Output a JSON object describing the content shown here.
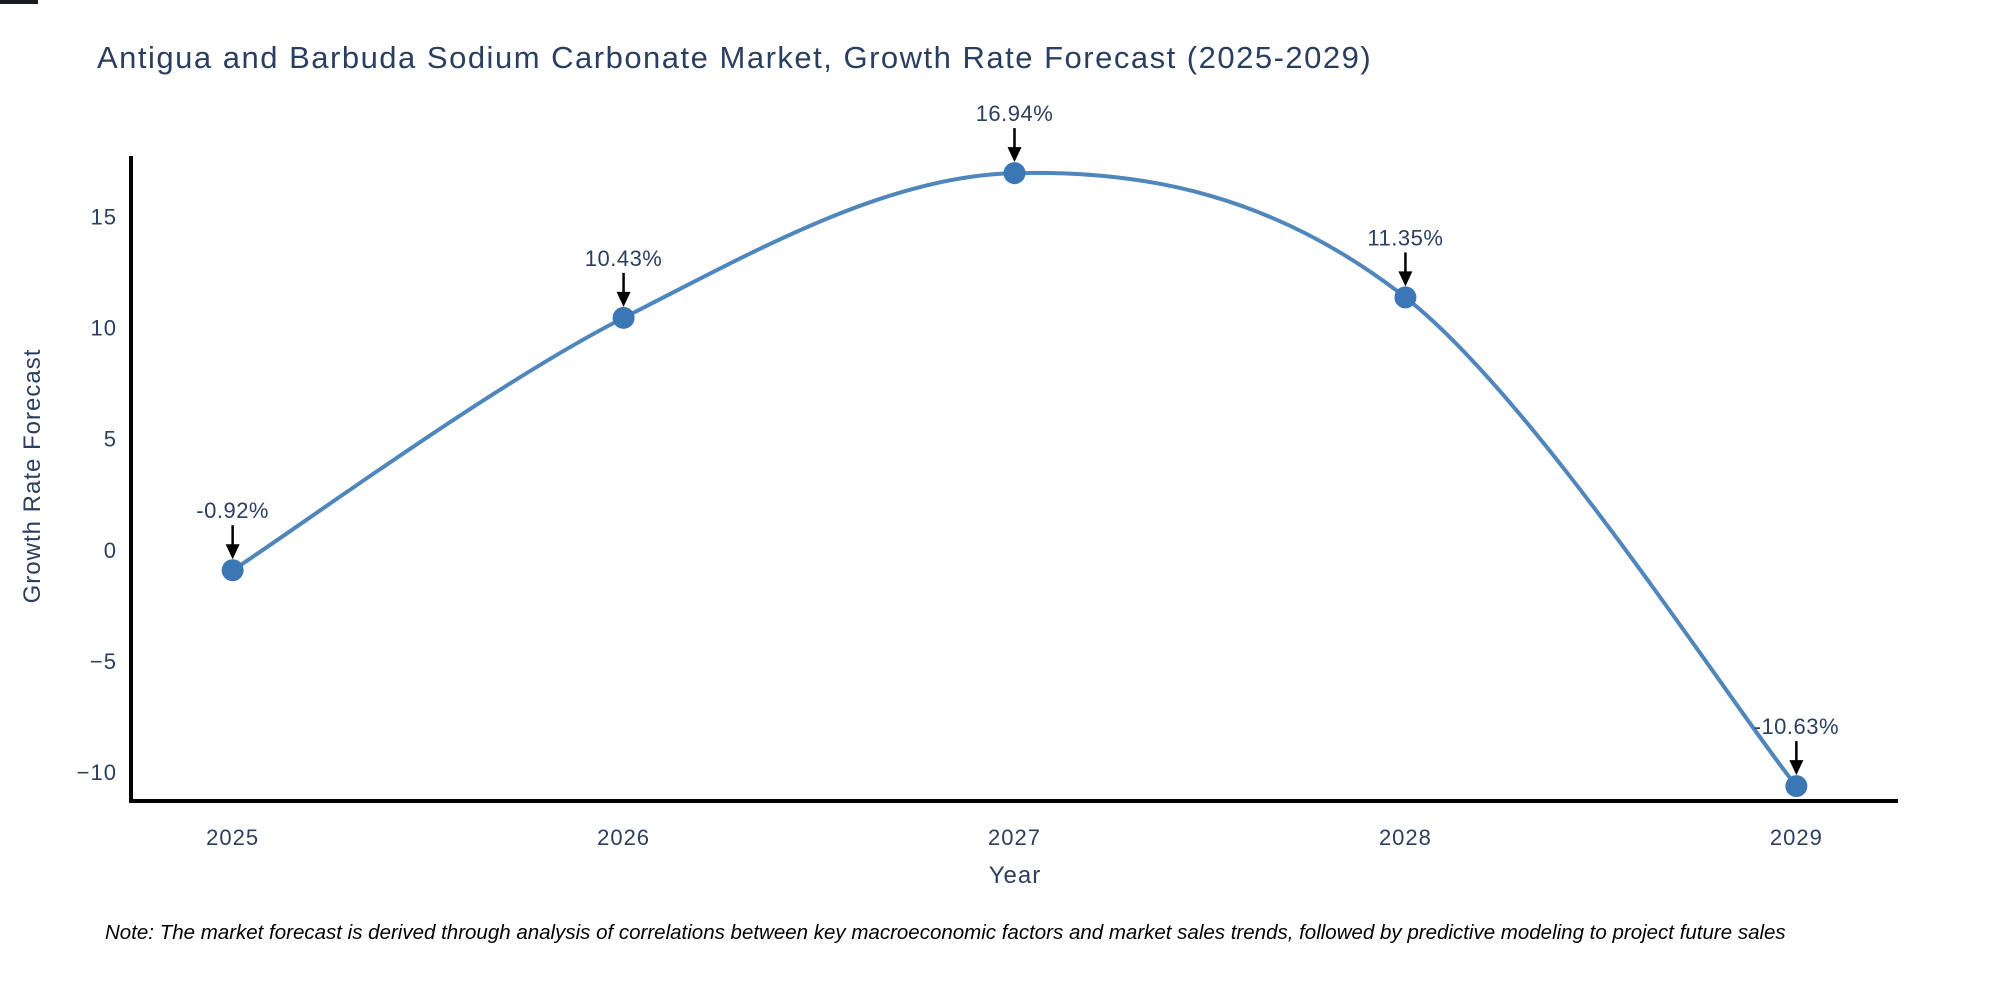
{
  "title": "Antigua and Barbuda Sodium Carbonate Market, Growth Rate Forecast (2025-2029)",
  "note": "Note: The market forecast is derived through analysis of correlations between key macroeconomic factors and market sales trends, followed by predictive modeling to project future sales",
  "chart_data": {
    "type": "line",
    "title": "Antigua and Barbuda Sodium Carbonate Market, Growth Rate Forecast (2025-2029)",
    "xlabel": "Year",
    "ylabel": "Growth Rate Forecast",
    "x": [
      2025,
      2026,
      2027,
      2028,
      2029
    ],
    "y": [
      -0.92,
      10.43,
      16.94,
      11.35,
      -10.63
    ],
    "point_labels": [
      "-0.92%",
      "10.43%",
      "16.94%",
      "11.35%",
      "-10.63%"
    ],
    "x_tick_labels": [
      "2025",
      "2026",
      "2027",
      "2028",
      "2029"
    ],
    "y_tick_labels": [
      "15",
      "10",
      "5",
      "0",
      "−5",
      "−10"
    ],
    "y_tick_values": [
      15,
      10,
      5,
      0,
      -5,
      -10
    ],
    "ylim": [
      -11.3,
      17.62
    ],
    "line_shape": "spline",
    "grid": false,
    "legend": "none",
    "colors": {
      "line": "#4f86bb",
      "marker": "#3a77b4",
      "axis": "#000000",
      "text": "#2a3f5f",
      "annotation_arrow": "#000000",
      "note_text": "#000000",
      "background": "#ffffff"
    }
  }
}
